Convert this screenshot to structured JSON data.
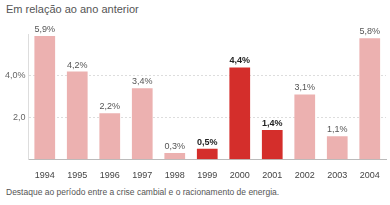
{
  "chart_data": {
    "type": "bar",
    "subtitle": "Em relação ao ano anterior",
    "annotations": [
      "Destaque ao período entre a crise cambial e o racionamento de energia."
    ],
    "categories": [
      "1994",
      "1995",
      "1996",
      "1997",
      "1998",
      "1999",
      "2000",
      "2001",
      "2002",
      "2003",
      "2004"
    ],
    "values": [
      5.9,
      4.2,
      2.2,
      3.4,
      0.3,
      0.5,
      4.4,
      1.4,
      3.1,
      1.1,
      5.8
    ],
    "value_labels": [
      "5,9%",
      "4,2%",
      "2,2%",
      "3,4%",
      "0,3%",
      "0,5%",
      "4,4%",
      "1,4%",
      "3,1%",
      "1,1%",
      "5,8%"
    ],
    "colors": [
      "#ecb1b0",
      "#ecb1b0",
      "#ecb1b0",
      "#ecb1b0",
      "#ecb1b0",
      "#d42e2b",
      "#d42e2b",
      "#d42e2b",
      "#ecb1b0",
      "#ecb1b0",
      "#ecb1b0"
    ],
    "data_labels": true,
    "ylim": [
      0,
      6
    ],
    "yticks": [
      {
        "value": 2,
        "label": "2,0"
      },
      {
        "value": 4,
        "label": "4,0%"
      }
    ],
    "grid": true
  }
}
